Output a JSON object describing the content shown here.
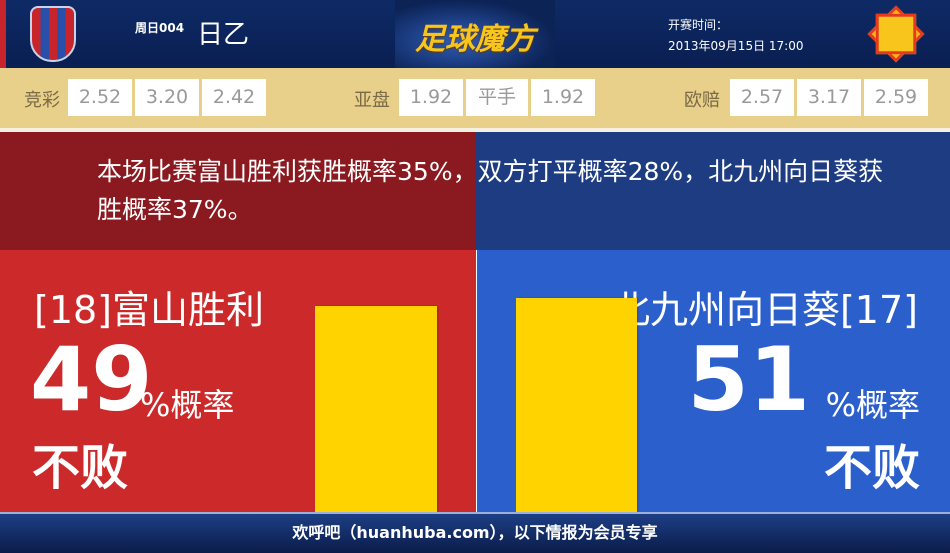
{
  "header": {
    "league_code": "周日004",
    "league_name": "日乙",
    "logo_text": "足球魔方",
    "time_label": "开赛时间：",
    "time_value": "2013年09月15日 17:00"
  },
  "odds": {
    "jingcai": {
      "label": "竞彩",
      "values": [
        "2.52",
        "3.20",
        "2.42"
      ]
    },
    "yapan": {
      "label": "亚盘",
      "values": [
        "1.92",
        "平手",
        "1.92"
      ]
    },
    "oupei": {
      "label": "欧赔",
      "values": [
        "2.57",
        "3.17",
        "2.59"
      ]
    }
  },
  "statement": "本场比赛富山胜利获胜概率35%，双方打平概率28%，北九州向日葵获胜概率37%。",
  "home": {
    "name": "[18]富山胜利",
    "percent": "49",
    "unit": "%概率",
    "label": "不败",
    "value": 49,
    "color": "#cc2a2a"
  },
  "away": {
    "name": "北九州向日葵[17]",
    "percent": "51",
    "unit": "%概率",
    "label": "不败",
    "value": 51,
    "color": "#2b5fcc"
  },
  "bar_color": "#ffd300",
  "footer": "欢呼吧（huanhuba.com），以下情报为会员专享"
}
